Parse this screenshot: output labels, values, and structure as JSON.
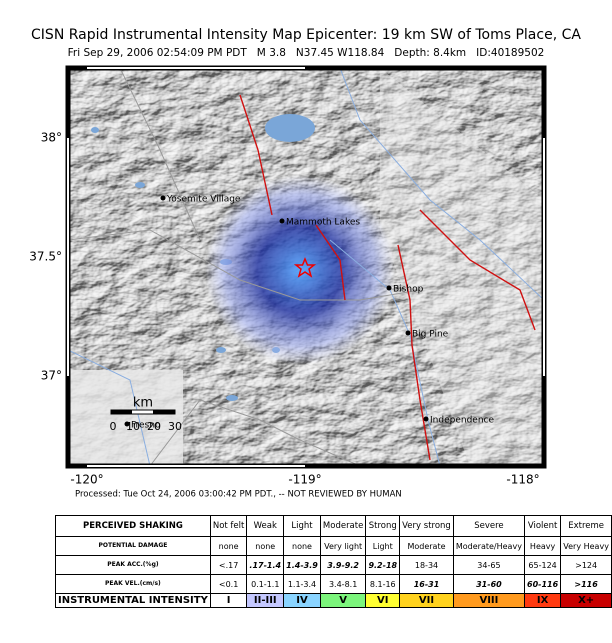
{
  "header": {
    "title": "CISN Rapid Instrumental Intensity Map Epicenter:  19 km SW of Toms Place, CA",
    "subtitle": "Fri Sep 29, 2006 02:54:09 PM PDT   M 3.8   N37.45 W118.84   Depth: 8.4km   ID:40189502"
  },
  "map": {
    "lat_labels": [
      "38°",
      "37.5°",
      "37°"
    ],
    "lon_labels": [
      "-120°",
      "-119°",
      "-118°"
    ],
    "places": [
      "Yosemite Village",
      "Mammoth Lakes",
      "Bishop",
      "Big Pine",
      "Independence",
      "Fresno"
    ],
    "scale": {
      "unit": "km",
      "ticks": [
        "0",
        "10",
        "20",
        "30"
      ]
    }
  },
  "footer": "Processed: Tue Oct 24, 2006 03:00:42 PM PDT., -- NOT REVIEWED BY HUMAN",
  "table": {
    "rows": [
      [
        "PERCEIVED SHAKING",
        "Not felt",
        "Weak",
        "Light",
        "Moderate",
        "Strong",
        "Very strong",
        "Severe",
        "Violent",
        "Extreme"
      ],
      [
        "POTENTIAL DAMAGE",
        "none",
        "none",
        "none",
        "Very light",
        "Light",
        "Moderate",
        "Moderate/Heavy",
        "Heavy",
        "Very Heavy"
      ],
      [
        "PEAK ACC.(%g)",
        "<.17",
        ".17-1.4",
        "1.4-3.9",
        "3.9-9.2",
        "9.2-18",
        "18-34",
        "34-65",
        "65-124",
        ">124"
      ],
      [
        "PEAK VEL.(cm/s)",
        "<0.1",
        "0.1-1.1",
        "1.1-3.4",
        "3.4-8.1",
        "8.1-16",
        "16-31",
        "31-60",
        "60-116",
        ">116"
      ],
      [
        "INSTRUMENTAL INTENSITY",
        "I",
        "II-III",
        "IV",
        "V",
        "VI",
        "VII",
        "VIII",
        "IX",
        "X+"
      ]
    ]
  }
}
